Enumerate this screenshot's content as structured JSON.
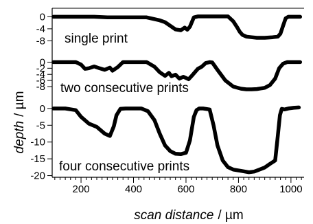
{
  "chart_data": {
    "type": "line",
    "xlabel": "scan distance",
    "xunit": "/ µm",
    "ylabel": "depth",
    "yunit": "/ µm",
    "xlim": [
      90,
      1050
    ],
    "x_ticks": [
      200,
      400,
      600,
      800,
      1000
    ],
    "grid": false,
    "line_color": "#000000",
    "panels": [
      {
        "label": "single print",
        "ylim": [
          -9.5,
          1
        ],
        "y_ticks": [
          0,
          -4,
          -8
        ],
        "y_tick_labels": [
          "0",
          "-4",
          "-8"
        ],
        "x": [
          95,
          150,
          200,
          250,
          300,
          330,
          360,
          400,
          450,
          500,
          520,
          540,
          560,
          580,
          595,
          605,
          615,
          630,
          645,
          660,
          680,
          720,
          760,
          780,
          795,
          805,
          815,
          830,
          850,
          870,
          900,
          930,
          950,
          960,
          970,
          980,
          990,
          1000,
          1010,
          1020,
          1035
        ],
        "y": [
          0,
          0,
          0,
          0,
          -0.2,
          -0.2,
          -0.2,
          -0.2,
          -0.2,
          -1.2,
          -1.8,
          -3,
          -4.2,
          -4.5,
          -3.6,
          -4.3,
          -3.3,
          -0.2,
          0.1,
          0.1,
          0.1,
          0.1,
          0.1,
          -1.5,
          -3.5,
          -5,
          -6,
          -6.6,
          -6.8,
          -7,
          -7,
          -6.8,
          -6.6,
          -5.6,
          -3,
          -0.5,
          0,
          0,
          0,
          0,
          0
        ]
      },
      {
        "label": "two consecutive prints",
        "ylim": [
          -9.8,
          1
        ],
        "y_ticks": [
          0,
          -2,
          -4,
          -6,
          -8
        ],
        "y_tick_labels": [
          "0",
          "-2",
          "-4",
          "-6",
          "-8"
        ],
        "x": [
          95,
          150,
          180,
          200,
          215,
          230,
          250,
          270,
          290,
          310,
          320,
          340,
          360,
          390,
          420,
          450,
          480,
          500,
          520,
          535,
          545,
          560,
          575,
          590,
          610,
          625,
          645,
          660,
          675,
          690,
          700,
          720,
          750,
          780,
          810,
          830,
          850,
          870,
          900,
          920,
          940,
          955,
          970,
          985,
          1000,
          1020,
          1035
        ],
        "y": [
          0,
          0,
          0,
          -0.8,
          -2.2,
          -2,
          -1.4,
          -2,
          -2.5,
          -1.8,
          -2.8,
          -1.6,
          0,
          0,
          0,
          0,
          -1.5,
          -3.3,
          -4.5,
          -3.5,
          -4.6,
          -4.1,
          -5.4,
          -4.8,
          -5.6,
          -4.2,
          -2.2,
          -1.5,
          -0.3,
          0,
          -0.1,
          -2.5,
          -6,
          -8,
          -8.7,
          -8.9,
          -8.9,
          -8.8,
          -8.4,
          -7.5,
          -5.4,
          -2,
          -0.5,
          0,
          0,
          0,
          0
        ]
      },
      {
        "label": "four consecutive prints",
        "ylim": [
          -20.5,
          1
        ],
        "y_ticks": [
          0,
          -5,
          -10,
          -15,
          -20
        ],
        "y_tick_labels": [
          "0",
          "-5",
          "-10",
          "-15",
          "-20"
        ],
        "x": [
          95,
          140,
          180,
          200,
          230,
          260,
          290,
          310,
          325,
          335,
          350,
          370,
          400,
          430,
          455,
          480,
          500,
          520,
          540,
          560,
          580,
          600,
          615,
          630,
          640,
          650,
          665,
          690,
          705,
          720,
          740,
          760,
          780,
          810,
          840,
          860,
          880,
          900,
          920,
          940,
          950,
          958,
          965,
          975,
          990,
          1010,
          1030
        ],
        "y": [
          0,
          0,
          -0.5,
          -2.5,
          -4.5,
          -5.5,
          -7.5,
          -8.2,
          -5.3,
          -2,
          -0.1,
          0,
          0,
          0,
          -0.8,
          -3.5,
          -7.5,
          -11,
          -12.7,
          -13.5,
          -13.6,
          -13.2,
          -9.5,
          -2.5,
          -0.5,
          0,
          0,
          -0.3,
          -5,
          -11,
          -15.5,
          -17.5,
          -18.2,
          -18.6,
          -19,
          -18.8,
          -18.2,
          -17.6,
          -16.5,
          -15.5,
          -8,
          -2,
          -0.1,
          -0.3,
          0,
          0.2,
          0.3
        ]
      }
    ]
  }
}
